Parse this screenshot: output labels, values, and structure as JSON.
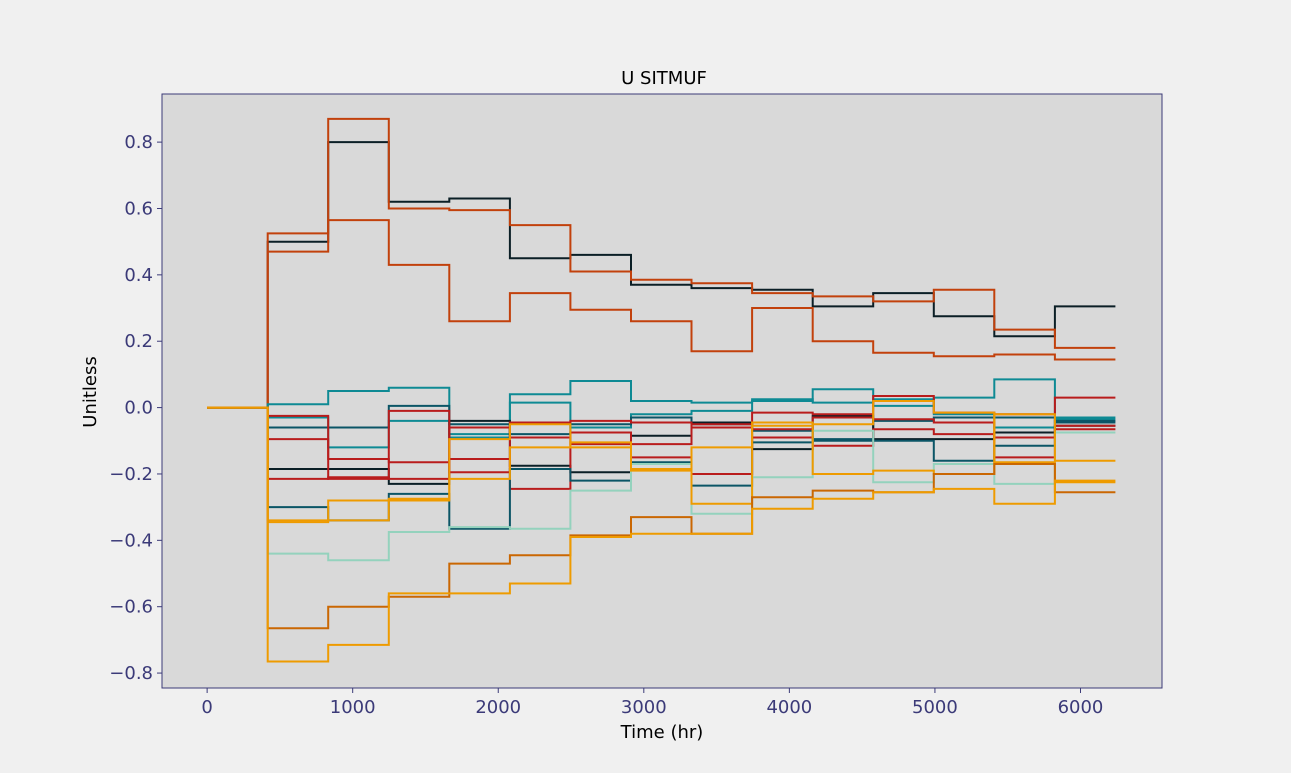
{
  "chart_data": {
    "type": "line",
    "step": "post",
    "title": "U SITMUF",
    "xlabel": "Time (hr)",
    "ylabel": "Unitless",
    "xlim": [
      -310,
      6560
    ],
    "ylim": [
      -0.845,
      0.945
    ],
    "xticks": [
      0,
      1000,
      2000,
      3000,
      4000,
      5000,
      6000
    ],
    "xtick_labels": [
      "0",
      "1000",
      "2000",
      "3000",
      "4000",
      "5000",
      "6000"
    ],
    "yticks": [
      0.8,
      0.6,
      0.4,
      0.2,
      0.0,
      -0.2,
      -0.4,
      -0.6,
      -0.8
    ],
    "ytick_labels": [
      "0.8",
      "0.6",
      "0.4",
      "0.2",
      "0.0",
      "−0.2",
      "−0.4",
      "−0.6",
      "−0.8"
    ],
    "grid": false,
    "legend": false,
    "colors": {
      "background": "#f0f0f0",
      "plot_area": "#d9d9d9",
      "frame": "#3b3a78",
      "tick_label": "#3b3a78"
    },
    "x": [
      0,
      416,
      832,
      1248,
      1664,
      2080,
      2496,
      2912,
      3328,
      3744,
      4160,
      4576,
      4992,
      5408,
      5824,
      6240
    ],
    "series": [
      {
        "color": "#0b1f26",
        "values": [
          0,
          0.5,
          0.8,
          0.62,
          0.63,
          0.45,
          0.46,
          0.37,
          0.36,
          0.355,
          0.305,
          0.345,
          0.275,
          0.215,
          0.305,
          0.305
        ]
      },
      {
        "color": "#c2410c",
        "values": [
          0,
          0.525,
          0.87,
          0.6,
          0.595,
          0.55,
          0.41,
          0.385,
          0.375,
          0.345,
          0.335,
          0.32,
          0.355,
          0.235,
          0.18,
          0.18
        ]
      },
      {
        "color": "#c2410c",
        "values": [
          0,
          0.47,
          0.565,
          0.43,
          0.26,
          0.345,
          0.295,
          0.26,
          0.17,
          0.3,
          0.2,
          0.165,
          0.155,
          0.16,
          0.145,
          0.145
        ]
      },
      {
        "color": "#0e8a94",
        "values": [
          0,
          0.01,
          0.05,
          0.06,
          -0.08,
          0.04,
          0.08,
          0.02,
          0.015,
          0.02,
          0.055,
          0.005,
          0.03,
          0.085,
          -0.03,
          -0.03
        ]
      },
      {
        "color": "#0e8a94",
        "values": [
          0,
          -0.03,
          -0.12,
          -0.04,
          -0.09,
          0.015,
          -0.06,
          -0.02,
          -0.01,
          0.025,
          0.015,
          0.025,
          -0.02,
          -0.06,
          -0.035,
          -0.035
        ]
      },
      {
        "color": "#0b5566",
        "values": [
          0,
          -0.06,
          -0.06,
          0.005,
          -0.05,
          -0.08,
          -0.05,
          -0.03,
          -0.05,
          -0.07,
          -0.1,
          -0.04,
          -0.03,
          -0.03,
          -0.045,
          -0.045
        ]
      },
      {
        "color": "#0b1f26",
        "values": [
          0,
          -0.185,
          -0.185,
          -0.23,
          -0.04,
          -0.175,
          -0.195,
          -0.085,
          -0.045,
          -0.125,
          -0.025,
          -0.095,
          -0.095,
          -0.075,
          -0.055,
          -0.055
        ]
      },
      {
        "color": "#b91c1c",
        "values": [
          0,
          -0.025,
          -0.215,
          -0.01,
          -0.195,
          -0.045,
          -0.04,
          -0.045,
          -0.06,
          -0.015,
          -0.02,
          0.035,
          -0.015,
          -0.02,
          0.03,
          0.03
        ]
      },
      {
        "color": "#b91c1c",
        "values": [
          0,
          -0.095,
          -0.155,
          -0.165,
          -0.155,
          -0.245,
          -0.075,
          -0.15,
          -0.2,
          -0.09,
          -0.115,
          -0.065,
          -0.08,
          -0.15,
          -0.065,
          -0.065
        ]
      },
      {
        "color": "#b91c1c",
        "values": [
          0,
          -0.215,
          -0.21,
          -0.215,
          -0.06,
          -0.09,
          -0.11,
          -0.11,
          -0.05,
          -0.065,
          -0.03,
          -0.035,
          -0.045,
          -0.09,
          -0.055,
          -0.055
        ]
      },
      {
        "color": "#0b5566",
        "values": [
          0,
          -0.3,
          -0.34,
          -0.26,
          -0.365,
          -0.185,
          -0.22,
          -0.165,
          -0.235,
          -0.105,
          -0.095,
          -0.1,
          -0.16,
          -0.115,
          -0.04,
          -0.04
        ]
      },
      {
        "color": "#94d2bd",
        "values": [
          0,
          -0.44,
          -0.46,
          -0.375,
          -0.36,
          -0.365,
          -0.25,
          -0.17,
          -0.32,
          -0.21,
          -0.07,
          -0.225,
          -0.17,
          -0.23,
          -0.075,
          -0.075
        ]
      },
      {
        "color": "#ee9b00",
        "values": [
          0,
          -0.345,
          -0.28,
          -0.275,
          -0.215,
          -0.12,
          -0.105,
          -0.185,
          -0.12,
          -0.045,
          -0.2,
          -0.19,
          -0.2,
          -0.02,
          -0.16,
          -0.16
        ]
      },
      {
        "color": "#ee9b00",
        "values": [
          0,
          -0.34,
          -0.34,
          -0.28,
          -0.095,
          -0.05,
          -0.12,
          -0.19,
          -0.29,
          -0.055,
          -0.05,
          0.02,
          -0.015,
          -0.165,
          -0.225,
          -0.225
        ]
      },
      {
        "color": "#ca6702",
        "values": [
          0,
          -0.665,
          -0.6,
          -0.57,
          -0.47,
          -0.445,
          -0.385,
          -0.33,
          -0.38,
          -0.27,
          -0.25,
          -0.255,
          -0.2,
          -0.17,
          -0.255,
          -0.255
        ]
      },
      {
        "color": "#ee9b00",
        "values": [
          0,
          -0.765,
          -0.715,
          -0.56,
          -0.56,
          -0.53,
          -0.39,
          -0.38,
          -0.38,
          -0.305,
          -0.275,
          -0.255,
          -0.245,
          -0.29,
          -0.22,
          -0.22
        ]
      }
    ]
  }
}
